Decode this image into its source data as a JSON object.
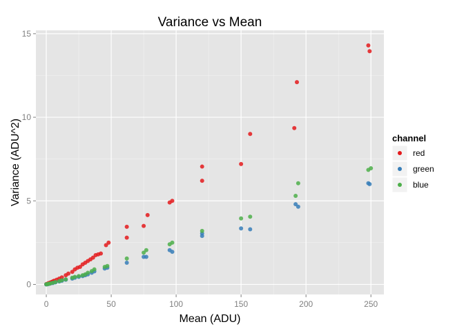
{
  "chart_data": {
    "type": "scatter",
    "title": "Variance vs Mean",
    "xlabel": "Mean (ADU)",
    "ylabel": "Variance (ADU^2)",
    "xlim": [
      -8,
      260
    ],
    "ylim": [
      -0.6,
      15.2
    ],
    "xticks": [
      0,
      50,
      100,
      150,
      200,
      250
    ],
    "yticks": [
      0,
      5,
      10,
      15
    ],
    "grid": true,
    "legend": {
      "title": "channel",
      "position": "right"
    },
    "series": [
      {
        "name": "red",
        "color": "#E41A1C",
        "points": [
          [
            0,
            0.02
          ],
          [
            1,
            0.05
          ],
          [
            2,
            0.08
          ],
          [
            3,
            0.11
          ],
          [
            4,
            0.14
          ],
          [
            5,
            0.18
          ],
          [
            6,
            0.22
          ],
          [
            8,
            0.28
          ],
          [
            10,
            0.35
          ],
          [
            12,
            0.42
          ],
          [
            15,
            0.55
          ],
          [
            17,
            0.65
          ],
          [
            20,
            0.75
          ],
          [
            22,
            0.9
          ],
          [
            24,
            1.0
          ],
          [
            26,
            1.05
          ],
          [
            28,
            1.2
          ],
          [
            30,
            1.3
          ],
          [
            32,
            1.4
          ],
          [
            34,
            1.5
          ],
          [
            36,
            1.6
          ],
          [
            38,
            1.75
          ],
          [
            40,
            1.8
          ],
          [
            42,
            1.85
          ],
          [
            46,
            2.35
          ],
          [
            48,
            2.5
          ],
          [
            62,
            2.8
          ],
          [
            62,
            3.45
          ],
          [
            75,
            3.5
          ],
          [
            78,
            4.15
          ],
          [
            95,
            4.9
          ],
          [
            97,
            5.0
          ],
          [
            120,
            6.2
          ],
          [
            120,
            7.05
          ],
          [
            150,
            7.2
          ],
          [
            157,
            9.0
          ],
          [
            191,
            9.35
          ],
          [
            193,
            12.1
          ],
          [
            248,
            14.3
          ],
          [
            249,
            13.95
          ]
        ]
      },
      {
        "name": "green",
        "color": "#377EB8",
        "points": [
          [
            0,
            0.0
          ],
          [
            1,
            0.01
          ],
          [
            2,
            0.03
          ],
          [
            3,
            0.05
          ],
          [
            5,
            0.08
          ],
          [
            7,
            0.12
          ],
          [
            10,
            0.18
          ],
          [
            12,
            0.22
          ],
          [
            15,
            0.28
          ],
          [
            20,
            0.35
          ],
          [
            22,
            0.4
          ],
          [
            25,
            0.45
          ],
          [
            28,
            0.5
          ],
          [
            30,
            0.55
          ],
          [
            32,
            0.6
          ],
          [
            35,
            0.7
          ],
          [
            37,
            0.78
          ],
          [
            45,
            0.95
          ],
          [
            47,
            1.0
          ],
          [
            62,
            1.3
          ],
          [
            75,
            1.65
          ],
          [
            77,
            1.65
          ],
          [
            95,
            2.05
          ],
          [
            97,
            1.95
          ],
          [
            120,
            2.9
          ],
          [
            120,
            3.05
          ],
          [
            150,
            3.35
          ],
          [
            157,
            3.3
          ],
          [
            192,
            4.8
          ],
          [
            194,
            4.65
          ],
          [
            248,
            6.05
          ],
          [
            249,
            6.0
          ]
        ]
      },
      {
        "name": "blue",
        "color": "#4DAF4A",
        "points": [
          [
            0,
            0.01
          ],
          [
            1,
            0.02
          ],
          [
            2,
            0.04
          ],
          [
            3,
            0.06
          ],
          [
            5,
            0.1
          ],
          [
            7,
            0.14
          ],
          [
            10,
            0.2
          ],
          [
            12,
            0.25
          ],
          [
            15,
            0.3
          ],
          [
            20,
            0.4
          ],
          [
            22,
            0.45
          ],
          [
            25,
            0.5
          ],
          [
            28,
            0.55
          ],
          [
            30,
            0.6
          ],
          [
            32,
            0.7
          ],
          [
            35,
            0.8
          ],
          [
            37,
            0.9
          ],
          [
            45,
            1.05
          ],
          [
            47,
            1.1
          ],
          [
            62,
            1.55
          ],
          [
            75,
            1.9
          ],
          [
            77,
            2.05
          ],
          [
            95,
            2.4
          ],
          [
            97,
            2.5
          ],
          [
            120,
            3.2
          ],
          [
            150,
            3.95
          ],
          [
            157,
            4.05
          ],
          [
            192,
            5.3
          ],
          [
            194,
            6.05
          ],
          [
            248,
            6.85
          ],
          [
            250,
            6.95
          ]
        ]
      }
    ]
  }
}
